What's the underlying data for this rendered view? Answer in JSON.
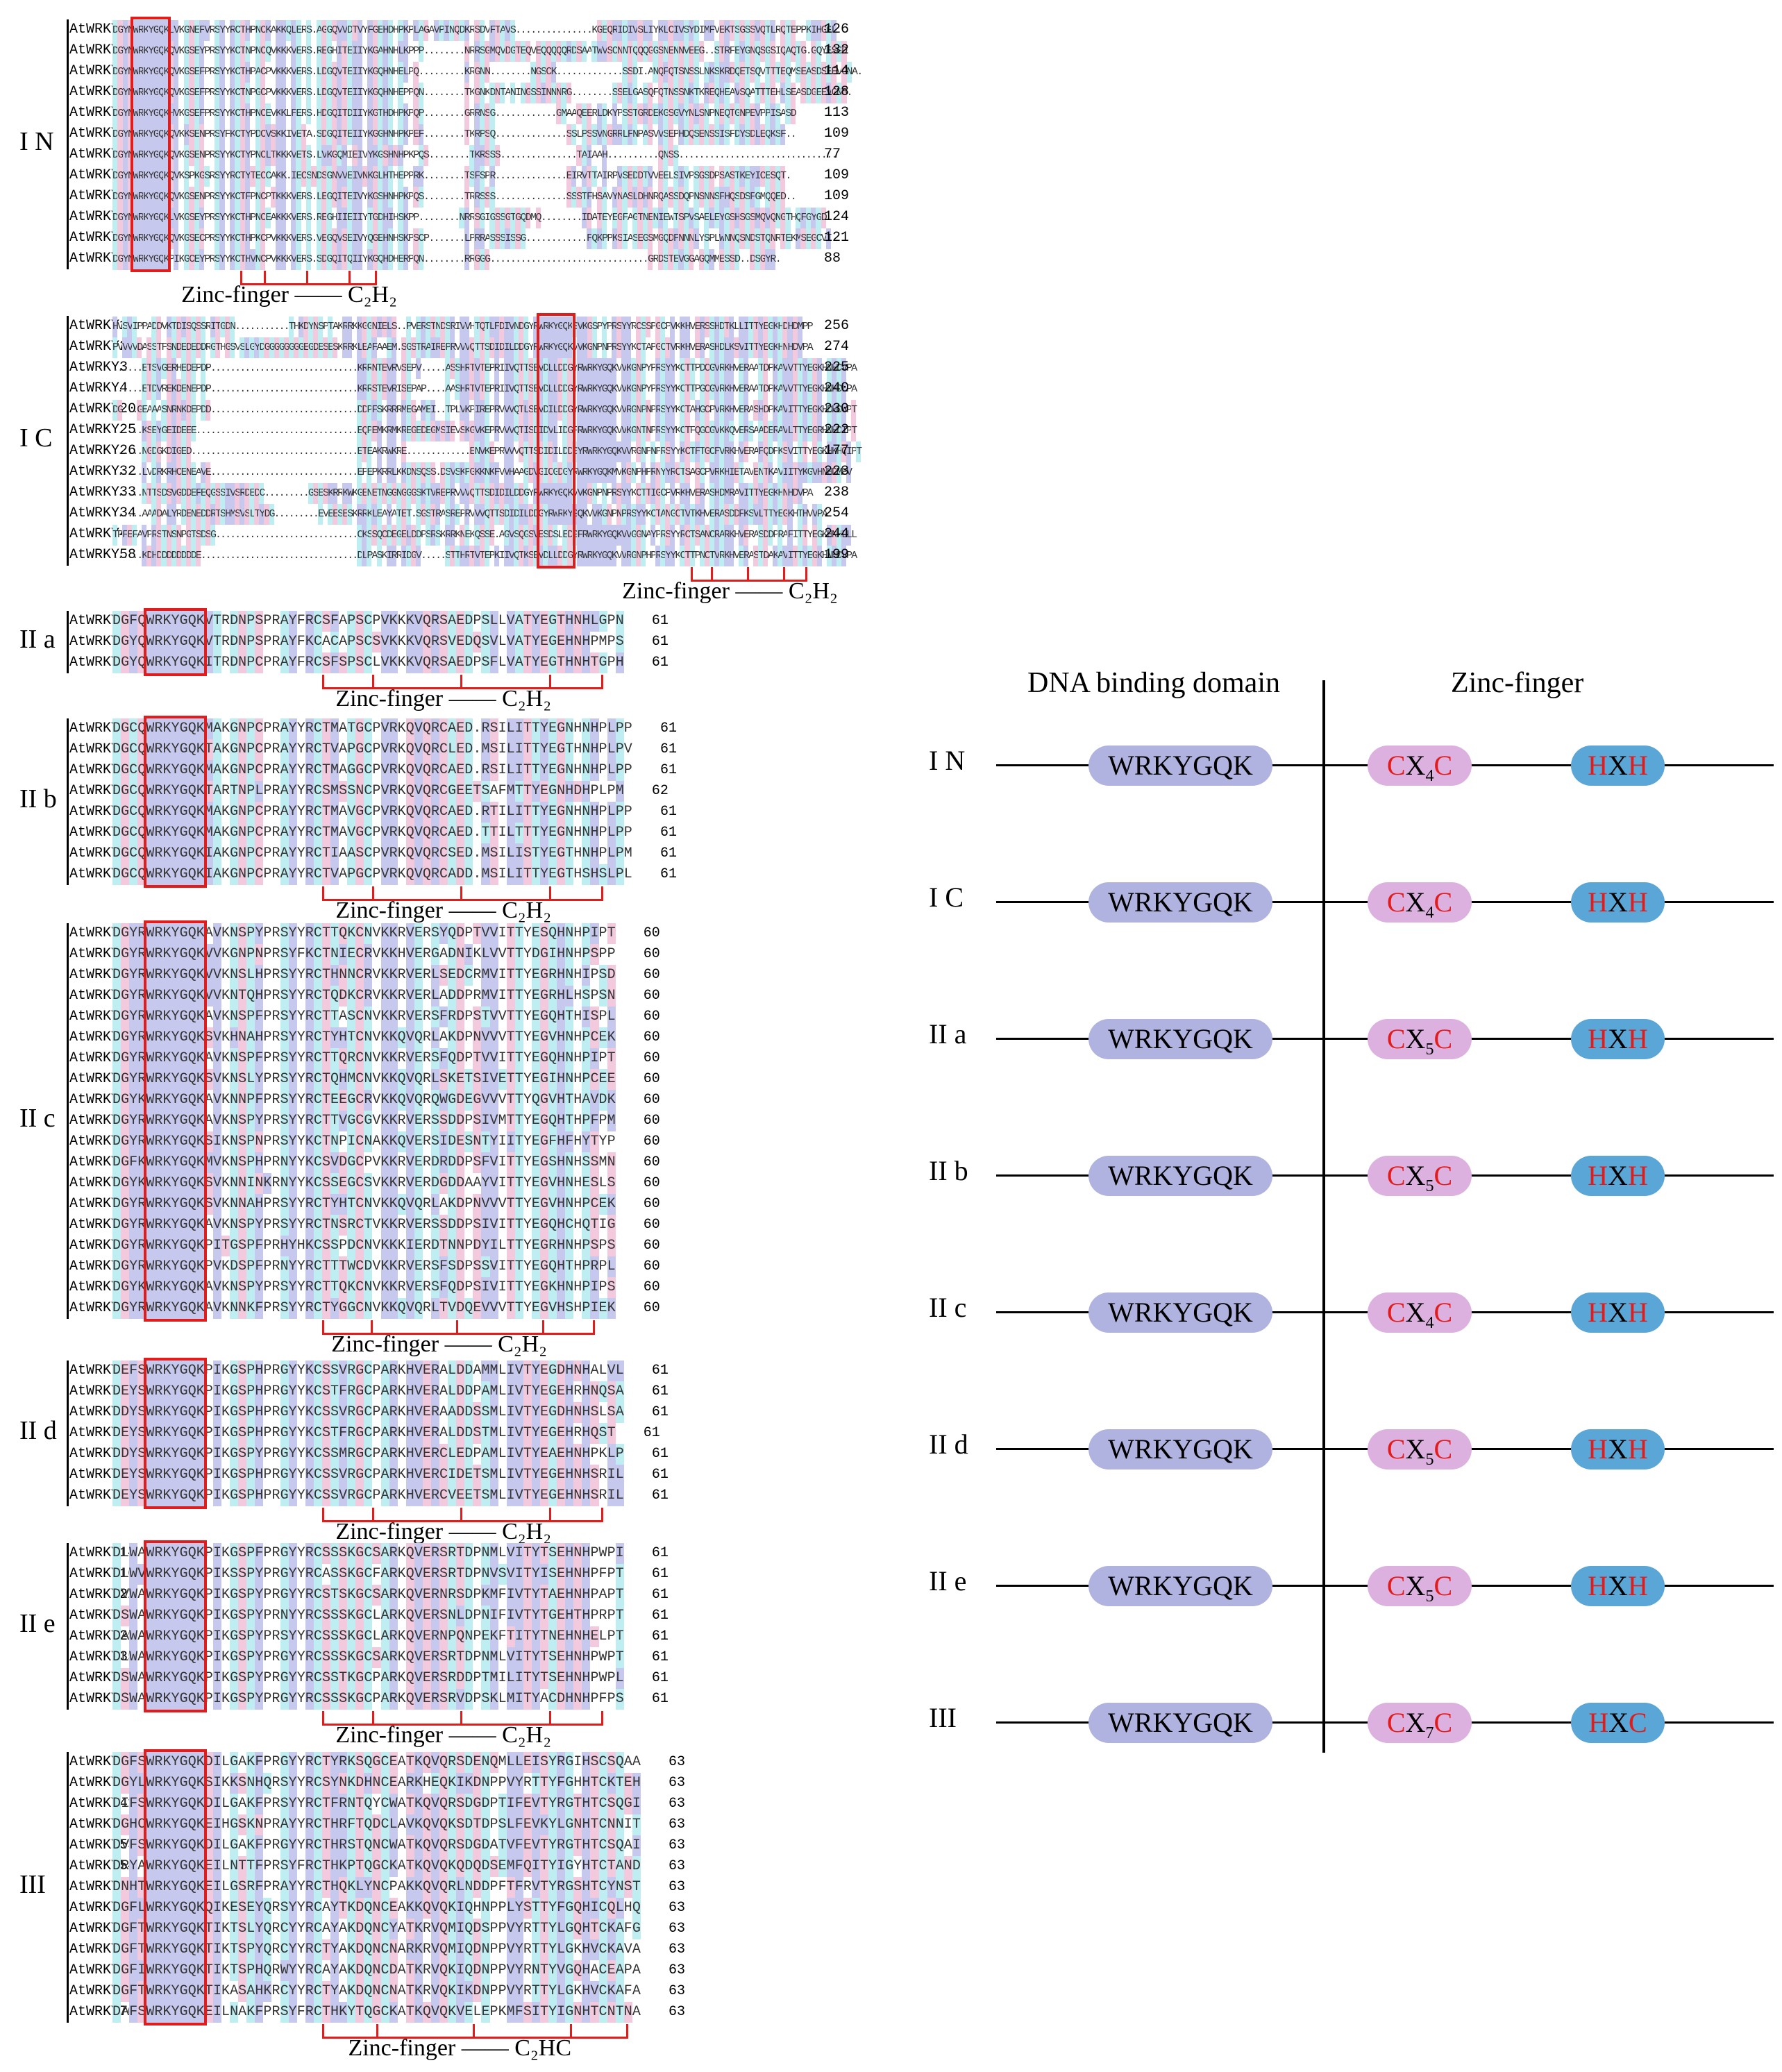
{
  "colors": {
    "blue_bg": "#c6c8ee",
    "pink_bg": "#f3c9de",
    "cyan_bg": "#bfeef2",
    "motif_box": "#e21b1b",
    "wrky_pill": "#b0b2df",
    "cx_pill": "#dcb0df",
    "hx_pill": "#5aa6d6"
  },
  "zinc_label": {
    "text": "Zinc-finger",
    "dash": "——",
    "c2h2": "C₂H₂",
    "c2hc": "C₂HC"
  },
  "alignment": [
    {
      "group": "I N",
      "rows": [
        {
          "name": "AtWRKY1",
          "seq": "DGYNWRKYGQKLVKGNEFVRSYYRCTHPNCKAKKQLERS.AGGQVVDTVYFGEHDHPKPLAGAVPINQDKRSDVFTAVS...............KGEQRIDIVSLIYKLCIVSYDIMFVEKTSGSSVQTLRQTEPPKIHGGL",
          "num": "126"
        },
        {
          "name": "AtWRKY2",
          "seq": "DGYNWRKYGQKQVKGSEYPRSYYKCTNPNCQVKKKVERS.REGHITEIIYKGAHNHLKPPP........NRRSGMQVDGTEQVEQQQQQRDSAATWVSCNNTQQQGGSNENNVEEG..STRFEYGNQSGSIQAQTG.GQYESGD",
          "num": "132"
        },
        {
          "name": "AtWRKY3",
          "seq": "DGYNWRKYGQKQVKGSEFPRSYYKCTHPACPVKKKVERS.LDGQVTEIIYKGQHNHELPQ.........KRGNN........NGSCK.............SSDI.ANQFQTSNSSLNKSKRDQETSQVTTTEQMSEASDSEEVGNA.",
          "num": "114"
        },
        {
          "name": "AtWRKY4",
          "seq": "DGYNWRKYGQKQVKGSEFPRSYYKCTNPGCPVKKKVERS.LDGQVTEIIYKGQHNHEPPQN........TKGNKDNTANINGSSINNNRG........SSELGASQFQTNSSNKTKREQHEAVSQATTTEHLSEASDGEEVGNG.",
          "num": "128"
        },
        {
          "name": "AtWRKY20",
          "seq": "DGYNWRKYGQKHVKGSEFPRSYYKCTHPNCEVKKLFERS.HDGQITDIIYKGTHDHPKPQP........GRRNSG............GMAAQEERLDKYPSSTGRDEKGSGVYNLSNPNEQTGNPEVPPISASD",
          "num": "113"
        },
        {
          "name": "AtWRKY25",
          "seq": "DGYNWRKYGQKQVKKSENPRSYFKCTYPDCVSKKIVETA.SDGQITEIIYKGGHNHPKPEF........TKRPSQ..............SSLPSSVNGRRLFNPASVVSEPHDQSENSSISFDYSDLEQKSF..",
          "num": "109"
        },
        {
          "name": "AtWRKY26",
          "seq": "DGYNWRKYGQKQVKGSENPRSYYKCTYPNCLTKKKVETS.LVKGQMIEIVYKGSHNHPKPQS........TKRSSS...............TAIAAH..........QNSS...............................",
          "num": "77"
        },
        {
          "name": "AtWRKY32",
          "seq": "DGYNWRKYGQKQVKSPKGSRSYYRCTYTECCAKK.IECSNDSGNVVEIVNKGLHTHEPPRK........TSFSPR..............EIRVTTAIRPVSEDDTVVEELSIVPSGSDPSASTKEYICESQT.",
          "num": "109"
        },
        {
          "name": "AtWRKY33",
          "seq": "DGYNWRKYGQKQVKGSENPRSYYKCTFPNCPTKKKVERS.LEGQITEIVYKGSHNHPKPQS........TRRSSS..............SSSTFHSAVYNASLDHNRQASSDQPNSNNSFHQSDSFGMQQED..",
          "num": "109"
        },
        {
          "name": "AtWRKY34",
          "seq": "DGYNWRKYGQKLVKGSEYPRSYYKCTHPNCEAKKKVERS.REGHIIEIIYTGDHIHSKPP........NRRSGIGSSGTGQDMQ........IDATEYEGFAGTNENIEWTSPVSAELEYGSHSGSMQVQNGTHQFGYGD",
          "num": "124"
        },
        {
          "name": "AtWRKY44",
          "seq": "DGYNWRKYGQKQVKGSECPRSYYKCTHPKCPVKKKVERS.VEGQVSEIVYQGEHNHSKPSCP.......LPRRASSSISSG............FQKPPKSIASEGSMGQDFNNNLYSPLWNNQSNDSTQNRTEKMSEGCVI",
          "num": "121"
        },
        {
          "name": "AtWRKY58",
          "seq": "DGYNWRKYGQKPIKGCEYPRSYYKCTHVNCPVKKKVERS.SDGQITQIIYKGQHDHERPQN........RRGGG...............................GRDSTEVGGAGQMMESSD..DSGYR.",
          "num": "88"
        }
      ]
    },
    {
      "group": "I C",
      "rows": [
        {
          "name": "AtWRKY1",
          "seq": "HVSVIPPADDVKTDISQSSRITGDN...........THKDYNSPTAKRRKKGGNIELS..PVERSTNDSRIVVHTQTLFDIVNDGYRWRKYGQKSVKGSPYPRSYYRCSSPGCPVKKHVERSSHDTKLLITTYEGKHDHDMPP",
          "num": "256"
        },
        {
          "name": "AtWRKY2",
          "seq": "PVVVVDASSTFSNDEDEDDRGTHGSVSLGYDGGGGGGGGEGDESESKRRKLEAFAAEM.SGSTRAIREPRVVVQTTSDIDILDDGYRWRKYGQKVVKGNPNPRSYYKCTAPGCTVRKHVERASHDLKSVITTYEGKHNHDVPA",
          "num": "274"
        },
        {
          "name": "AtWRKY3",
          "seq": "......ETSVGERHEDEPDP..............................KRRNTEVRVSEPV.....ASSHRTVTEPRIIVQTTSEVDLLDDGYRWRKYGQKVVKGNPYPRSYYKCTTPDCGVRKHVERAATDPKAVVTTYEGKHNHDVPA",
          "num": "225"
        },
        {
          "name": "AtWRKY4",
          "seq": "......ETDVREKDENEPDP..............................KRRSTEVRISEPAP....AASHRTVTEPRIIVQTTSEVDLLDDGYRWRKYGQKVVKGNPYPRSYYKCTTPGCGVRKHVERAATDPKAVVTTYEGKHNHDLPA",
          "num": "240"
        },
        {
          "name": "AtWRKY20",
          "seq": "DG...GEAAASNRNKDEPDD..............................DDPFSKRRRMEGAMEI..TPLVKPIREPRVVVQTLSEVDILDDGYRWRKYGQKVVRGNPNPRSYYKCTAHGCPVRKHVERASHDPKAVITTYEGKHDHDVPT",
          "num": "230"
        },
        {
          "name": "AtWRKY25",
          "seq": "......KSEYGEIDEEE.................................EQPEMKRMKREGEDEGMSIEVSKGVKEPRVVVQTISDIDVLIDGFRWRKYGQKVVKGNTNPRSYYKCTFQGCGVKKQVERSAADERAVLTTYEGRHNHDIPT",
          "num": "222"
        },
        {
          "name": "AtWRKY26",
          "seq": "......NGDGKDIGED..................................ETEAKRWKRE.............ENVKEPRVVVQTTSDIDILDDGYRWRKYGQKVVRGNPNPRSYYKCTFTGCFVRKHVERAFQDPKSVITTYEGKHKHQIPT",
          "num": "177"
        },
        {
          "name": "AtWRKY32",
          "seq": "......LVDRKRHCENEAVE..............................EPEPKRRLKKDNSQSS.DSVSKPGKKNKFVVHAAGDVGICGDGYRWRKYGQKMVKGNPHPRNYYRCTSAGCPVRKHIETAVENTKAVIITYKGVHNHDMPV",
          "num": "223"
        },
        {
          "name": "AtWRKY33",
          "seq": "......NTTSDSVGDDEFEQGSSIVSRDEDC.........GSESKRRKWKGENETNGGNGGGSKTVREPRVVVQTTSDIDILDDGYRWRKYGQKVVKGNPNPRSYYKCTTIGCPVRKHVERASHDMRAVITTYEGKHNHDVPA",
          "num": "238"
        },
        {
          "name": "AtWRKY34",
          "seq": "......AAADALYRDENEDDRTSHMSVSLTYDG.........EVEESESKRRKLEAYATET.SGSTRASREPRVVVQTTSDIDILDDGYRWRKYGQKVVKGNPNPRSYYKCTANGCTVTKHVERASDDFKSVLTTYEGKHTHVVPA",
          "num": "254"
        },
        {
          "name": "AtWRKY44",
          "seq": "TPFEFAVPRSTNSNPGTSDSG.............................CKSSQCDEGELDDPSRSKRRKNEKQSSE.AGVSQGSVESDSLEDGFRWRKYGQKVVGGNAYPRSYYRCTSANCRARKHVERASDDPRAFITTYEGKHNHLLL",
          "num": "244"
        },
        {
          "name": "AtWRKY58",
          "seq": "......KDHDDDDDDDDE................................DLPASKIRRIDGV.....STTHRTVTEPKIIVQTKSEVDLLDDGYRWRKYGQKVVRGNPHPRSYYKCTTPNCTVRKHVERASTDAKAVITTYEGKHNHDVPA",
          "num": "199"
        }
      ]
    },
    {
      "group": "II a",
      "rows": [
        {
          "name": "AtWRKY18",
          "seq": "DGFQWRKYGQKVTRDNPSPRAYFRCSFAPSCPVKKKVQRSAEDPSLLVATYEGTHNHLGPN",
          "num": "61"
        },
        {
          "name": "AtWRKY40",
          "seq": "DGYQWRKYGQKVTRDNPSPRAYFKCACAPSCSVKKKVQRSVEDQSVLVATYEGEHNHPMPS",
          "num": "61"
        },
        {
          "name": "AtWRKY60",
          "seq": "DGYQWRKYGQKITRDNPCPRAYFRCSFSPSCLVKKKVQRSAEDPSFLVATYEGTHNHTGPH",
          "num": "61"
        }
      ]
    },
    {
      "group": "II b",
      "rows": [
        {
          "name": "AtWRKY6",
          "seq": "DGCQWRKYGQKMAKGNPCPRAYYRCTMATGCPVRKQVQRCAED.RSILITTYEGNHNHPLPP",
          "num": "61"
        },
        {
          "name": "AtWRKY9",
          "seq": "DGCQWRKYGQKTAKGNPCPRAYYRCTVAPGCPVRKQVQRCLED.MSILITTYEGTHNHPLPV",
          "num": "61"
        },
        {
          "name": "AtWRKY31",
          "seq": "DGCQWRKYGQKMAKGNPCPRAYYRCTMAGGCPVRKQVQRCAED.RSILITTYEGNHNHPLPP",
          "num": "61"
        },
        {
          "name": "AtWRKY36",
          "seq": "DGCQWRKYGQKTARTNPLPRAYYRCSMSSNCPVRKQVQRCGEETSAFMTTYEGNHDHPLPM",
          "num": "62"
        },
        {
          "name": "AtWRKY42",
          "seq": "DGCQWRKYGQKMAKGNPCPRAYYRCTMAVGCPVRKQVQRCAED.RTILITTYEGNHNHPLPP",
          "num": "61"
        },
        {
          "name": "AtWRKY47",
          "seq": "DGCQWRKYGQKMAKGNPCPRAYYRCTMAVGCPVRKQVQRCAED.TTILTTTYEGNHNHPLPP",
          "num": "61"
        },
        {
          "name": "AtWRKY61",
          "seq": "DGCQWRKYGQKIAKGNPCPRAYYRCTIAASCPVRKQVQRCSED.MSILISTYEGTHNHPLPM",
          "num": "61"
        },
        {
          "name": "AtWRKY72",
          "seq": "DGCQWRKYGQKIAKGNPCPRAYYRCTVAPGCPVRKQVQRCADD.MSILITTYEGTHSHSLPL",
          "num": "61"
        }
      ]
    },
    {
      "group": "II c",
      "rows": [
        {
          "name": "AtWRKY8",
          "seq": "DGYRWRKYGQKAVKNSPYPRSYYRCTTQKCNVKKRVERSYQDPTVVITTYESQHNHPIPT",
          "num": "60"
        },
        {
          "name": "AtWRKY10",
          "seq": "DGYRWRKYGQKVVKGNPNPRSYFKCTNIECRVKKHVERGADNIKLVVTTYDGIHNHPSPP",
          "num": "60"
        },
        {
          "name": "AtWRKY12",
          "seq": "DGYRWRKYGQKVVKNSLHPRSYYRCTHNNCRVKKRVERLSEDCRMVITTYEGRHNHIPSD",
          "num": "60"
        },
        {
          "name": "AtWRKY13",
          "seq": "DGYRWRKYGQKVVKNTQHPRSYYRCTQDKCRVKKRVERLADDPRMVITTYEGRHLHSPSN",
          "num": "60"
        },
        {
          "name": "AtWRKY23",
          "seq": "DGYRWRKYGQKAVKNSPFPRSYYRCTTASCNVKKRVERSFRDPSTVVTTYEGQHTHISPL",
          "num": "60"
        },
        {
          "name": "AtWRKY24",
          "seq": "DGYRWRKYGQKSVKHNAHPRSYYRCTYHTCNVKKQVQRLAKDPNVVVTTYEGVHNHPCEK",
          "num": "60"
        },
        {
          "name": "AtWRKY28",
          "seq": "DGYRWRKYGQKAVKNSPFPRSYYRCTTQRCNVKKRVERSFQDPTVVITTYEGQHNHPIPT",
          "num": "60"
        },
        {
          "name": "AtWRKY43",
          "seq": "DGYRWRKYGQKSVKNSLYPRSYYRCTQHMCNVKKQVQRLSKETSIVETTYEGIHNHPCEE",
          "num": "60"
        },
        {
          "name": "AtWRKY45",
          "seq": "DGYKWRKYGQKAVKNNPFPRSYYRCTEEGCRVKKQVQRQWGDEGVVVTTYQGVHTHAVDK",
          "num": "60"
        },
        {
          "name": "AtWRKY48",
          "seq": "DGYRWRKYGQKAVKNSPYPRSYYRCTTVGCGVKKRVERSSDDPSIVMTTYEGQHTHPFPM",
          "num": "60"
        },
        {
          "name": "AtWRKY49",
          "seq": "DGYRWRKYGQKSIKNSPNPRSYYKCTNPICNAKKQVERSIDESNTYIITYEGFHFHYTYP",
          "num": "60"
        },
        {
          "name": "AtWRKY50",
          "seq": "DGFKWRKYGQKMVKNSPHPRNYYKCSVDGCPVKKRVERDRDDPSFVITTYEGSHNHSSMN",
          "num": "60"
        },
        {
          "name": "AtWRKY51",
          "seq": "DGYKWRKYGQKSVKNNINKRNYYKCSSEGCSVKKRVERDGDDAAYVITTYEGVHNHESLS",
          "num": "60"
        },
        {
          "name": "AtWRKY56",
          "seq": "DGYRWRKYGQKSVKNNAHPRSYYRCTYHTCNVKKQVQRLAKDPNVVVTTYEGVHNHPCEK",
          "num": "60"
        },
        {
          "name": "AtWRKY57",
          "seq": "DGYRWRKYGQKAVKNSPYPRSYYRCTNSRCTVKKRVERSSDDPSIVITTYEGQHCHQTIG",
          "num": "60"
        },
        {
          "name": "AtWRKY59",
          "seq": "DGYRWRKYGQKPITGSPFPRHYHKCSSPDCNVKKKIERDTNNPDYILTTYEGRHNHPSPS",
          "num": "60"
        },
        {
          "name": "AtWRKY68",
          "seq": "DGYRWRKYGQKPVKDSPFPRNYYRCTTTWCDVKKRVERSFSDPSSVITTYEGQHTHPRPL",
          "num": "60"
        },
        {
          "name": "AtWRKY71",
          "seq": "DGYKWRKYGQKAVKNSPYPRSYYRCTTQKCNVKKRVERSFQDPSIVITTYEGKHNHPIPS",
          "num": "60"
        },
        {
          "name": "AtWRKY75",
          "seq": "DGYRWRKYGQKAVKNNKFPRSYYRCTYGGCNVKKQVQRLTVDQEVVVTTYEGVHSHPIEK",
          "num": "60"
        }
      ]
    },
    {
      "group": "II d",
      "rows": [
        {
          "name": "AtWRKY7",
          "seq": "DEFSWRKYGQKPIKGSPHPRGYYKCSSVRGCPARKHVERALDDAMMLIVTYEGDHNHALVL",
          "num": "61"
        },
        {
          "name": "AtWRKY11",
          "seq": "DEYSWRKYGQKPIKGSPHPRGYYKCSTFRGCPARKHVERALDDPAMLIVTYEGEHRHNQSA",
          "num": "61"
        },
        {
          "name": "AtWRKY15",
          "seq": "DDYSWRKYGQKPIKGSPHPRGYYKCSSVRGCPARKHVERAADDSSMLIVTYEGDHNHSLSA",
          "num": "61"
        },
        {
          "name": "AtWRKY17",
          "seq": "DEYSWRKYGQKPIKGSPHPRGYYKCSTFRGCPARKHVERALDDSTMLIVTYEGEHRHQST",
          "num": "61"
        },
        {
          "name": "AtWRKY21",
          "seq": "DDYSWRKYGQKPIKGSPYPRGYYKCSSMRGCPARKHVERCLEDPAMLIVTYEAEHNHPKLP",
          "num": "61"
        },
        {
          "name": "AtWRKY39",
          "seq": "DEYSWRKYGQKPIKGSPHPRGYYKCSSVRGCPARKHVERCIDETSMLIVTYEGEHNHSRIL",
          "num": "61"
        },
        {
          "name": "AtWRKY74",
          "seq": "DEYSWRKYGQKPIKGSPHPRGYYKCSSVRGCPARKHVERCVEETSMLIVTYEGEHNHSRIL",
          "num": "61"
        }
      ]
    },
    {
      "group": "II e",
      "rows": [
        {
          "name": "AtWRKY14",
          "seq": "DLWAWRKYGQKPIKGSPFPRGYYRCSSSKGCSARKQVERSRTDPNMLVITYTSEHNHPWPI",
          "num": "61"
        },
        {
          "name": "AtWRKY16",
          "seq": "DLWVWRKYGQKPIKSSPYPRGYYRCASSKGCFARKQVERSRTDPNVSVITYISEHNHPFPT",
          "num": "61"
        },
        {
          "name": "AtWRKY22",
          "seq": "DVWAWRKYGQKPIKGSPYPRGYYRCSTSKGCSARKQVERNRSDPKMFIVTYTAEHNHPAPT",
          "num": "61"
        },
        {
          "name": "AtWRKY27",
          "seq": "DSWAWRKYGQKPIKGSPYPRNYYRCSSSKGCLARKQVERSNLDPNIFIVTYTGEHTHPRPT",
          "num": "61"
        },
        {
          "name": "AtWRKY29",
          "seq": "DAWAWRKYGQKPIKGSPYPRSYYRCSSSKGCLARKQVERNPQNPEKFTITYTNEHNHELPT",
          "num": "61"
        },
        {
          "name": "AtWRKY35",
          "seq": "DLWAWRKYGQKPIKGSPYPRGYYRCSSSKGCSARKQVERSRTDPNMLVITYTSEHNHPWPT",
          "num": "61"
        },
        {
          "name": "AtWRKY65",
          "seq": "DSWAWRKYGQKPIKGSPYPRGYYRCSSTKGCPARKQVERSRDDPTMILITYTSEHNHPWPL",
          "num": "61"
        },
        {
          "name": "AtWRKY69",
          "seq": "DSWAWRKYGQKPIKGSPYPRGYYRCSSSKGCPARKQVERSRVDPSKLMITYACDHNHPFPS",
          "num": "61"
        }
      ]
    },
    {
      "group": "III",
      "rows": [
        {
          "name": "AtWRKY30",
          "seq": "DGFSWRKYGQKDILGAKFPRGYYRCTYRKSQGCEATKQVQRSDENQMLLEISYRGIHSCSQAA",
          "num": "63"
        },
        {
          "name": "AtWRKY38",
          "seq": "DGYLWRKYGQKSIKKSNHQRSYYRCSYNKDHNCEARKHEQKIKDNPPVYRTTYFGHHTCKTEH",
          "num": "63"
        },
        {
          "name": "AtWRKY41",
          "seq": "DIFSWRKYGQKDILGAKFPRSYYRCTFRNTQYCWATKQVQRSDGDPTIFEVTYRGTHTCSQGI",
          "num": "63"
        },
        {
          "name": "AtWRKY46",
          "seq": "DGHCWRKYGQKEIHGSKNPRAYYRCTHRFTQDCLAVKQVQKSDTDPSLFEVKYLGNHTCNNIT",
          "num": "63"
        },
        {
          "name": "AtWRKY53",
          "seq": "DVFSWRKYGQKDILGAKFPRGYYRCTHRSTQNCWATKQVQRSDGDATVFEVTYRGTHTCSQAI",
          "num": "63"
        },
        {
          "name": "AtWRKY54",
          "seq": "DRYAWRKYGQKEILNTTFPRSYFRCTHKPTQGCKATKQVQKQDQDSEMFQITYIGYHTCTAND",
          "num": "63"
        },
        {
          "name": "AtWRKY55",
          "seq": "DNHTWRKYGQKEILGSRFPRAYYRCTHQKLYNCPAKKQVQRLNDDPFTFRVTYRGSHTCYNST",
          "num": "63"
        },
        {
          "name": "AtWRKY62",
          "seq": "DGFLWRKYGQKQIKESEYQRSYYRCAYTKDQNCEAKKQVQKIQHNPPLYSTTYFGQHICQLHQ",
          "num": "63"
        },
        {
          "name": "AtWRKY63",
          "seq": "DGFTWRKYGQKTIKTSLYQRCYYRCAYAKDQNCYATKRVQMIQDSPPVYRTTYLGQHTCKAFG",
          "num": "63"
        },
        {
          "name": "AtWRKY64",
          "seq": "DGFTWRKYGQKTIKTSPYQRCYYRCTYAKDQNCNARKRVQMIQDNPPVYRTTYLGKHVCKAVA",
          "num": "63"
        },
        {
          "name": "AtWRKY66",
          "seq": "DGFIWRKYGQKTIKTSPHQRWYYRCAYAKDQNCDATKRVQKIQDNPPVYRNTYVGQHACEAPA",
          "num": "63"
        },
        {
          "name": "AtWRKY67",
          "seq": "DGFTWRKYGQKTIKASAHKRCYYRCTYAKDQNCNATKRVQKIKDNPPVYRTTYLGKHVCKAFA",
          "num": "63"
        },
        {
          "name": "AtWRKY70",
          "seq": "DAFSWRKYGQKEILNAKFPRSYFRCTHKYTQGCKATKQVQKVELEPKMFSITYIGNHTCNTNA",
          "num": "63"
        }
      ]
    }
  ],
  "domain_diagram": {
    "header_left": "DNA binding domain",
    "header_right": "Zinc-finger",
    "rows": [
      {
        "label": "I N",
        "motif": "WRKYGQK",
        "c_start": "C",
        "x": "X",
        "sub": "4",
        "c_end": "C",
        "h_start": "H",
        "hx": "X",
        "h_end": "H"
      },
      {
        "label": "I C",
        "motif": "WRKYGQK",
        "c_start": "C",
        "x": "X",
        "sub": "4",
        "c_end": "C",
        "h_start": "H",
        "hx": "X",
        "h_end": "H"
      },
      {
        "label": "II a",
        "motif": "WRKYGQK",
        "c_start": "C",
        "x": "X",
        "sub": "5",
        "c_end": "C",
        "h_start": "H",
        "hx": "X",
        "h_end": "H"
      },
      {
        "label": "II b",
        "motif": "WRKYGQK",
        "c_start": "C",
        "x": "X",
        "sub": "5",
        "c_end": "C",
        "h_start": "H",
        "hx": "X",
        "h_end": "H"
      },
      {
        "label": "II c",
        "motif": "WRKYGQK",
        "c_start": "C",
        "x": "X",
        "sub": "4",
        "c_end": "C",
        "h_start": "H",
        "hx": "X",
        "h_end": "H"
      },
      {
        "label": "II d",
        "motif": "WRKYGQK",
        "c_start": "C",
        "x": "X",
        "sub": "5",
        "c_end": "C",
        "h_start": "H",
        "hx": "X",
        "h_end": "H"
      },
      {
        "label": "II e",
        "motif": "WRKYGQK",
        "c_start": "C",
        "x": "X",
        "sub": "5",
        "c_end": "C",
        "h_start": "H",
        "hx": "X",
        "h_end": "H"
      },
      {
        "label": "III",
        "motif": "WRKYGQK",
        "c_start": "C",
        "x": "X",
        "sub": "7",
        "c_end": "C",
        "h_start": "H",
        "hx": "X",
        "h_end": "C"
      }
    ]
  }
}
